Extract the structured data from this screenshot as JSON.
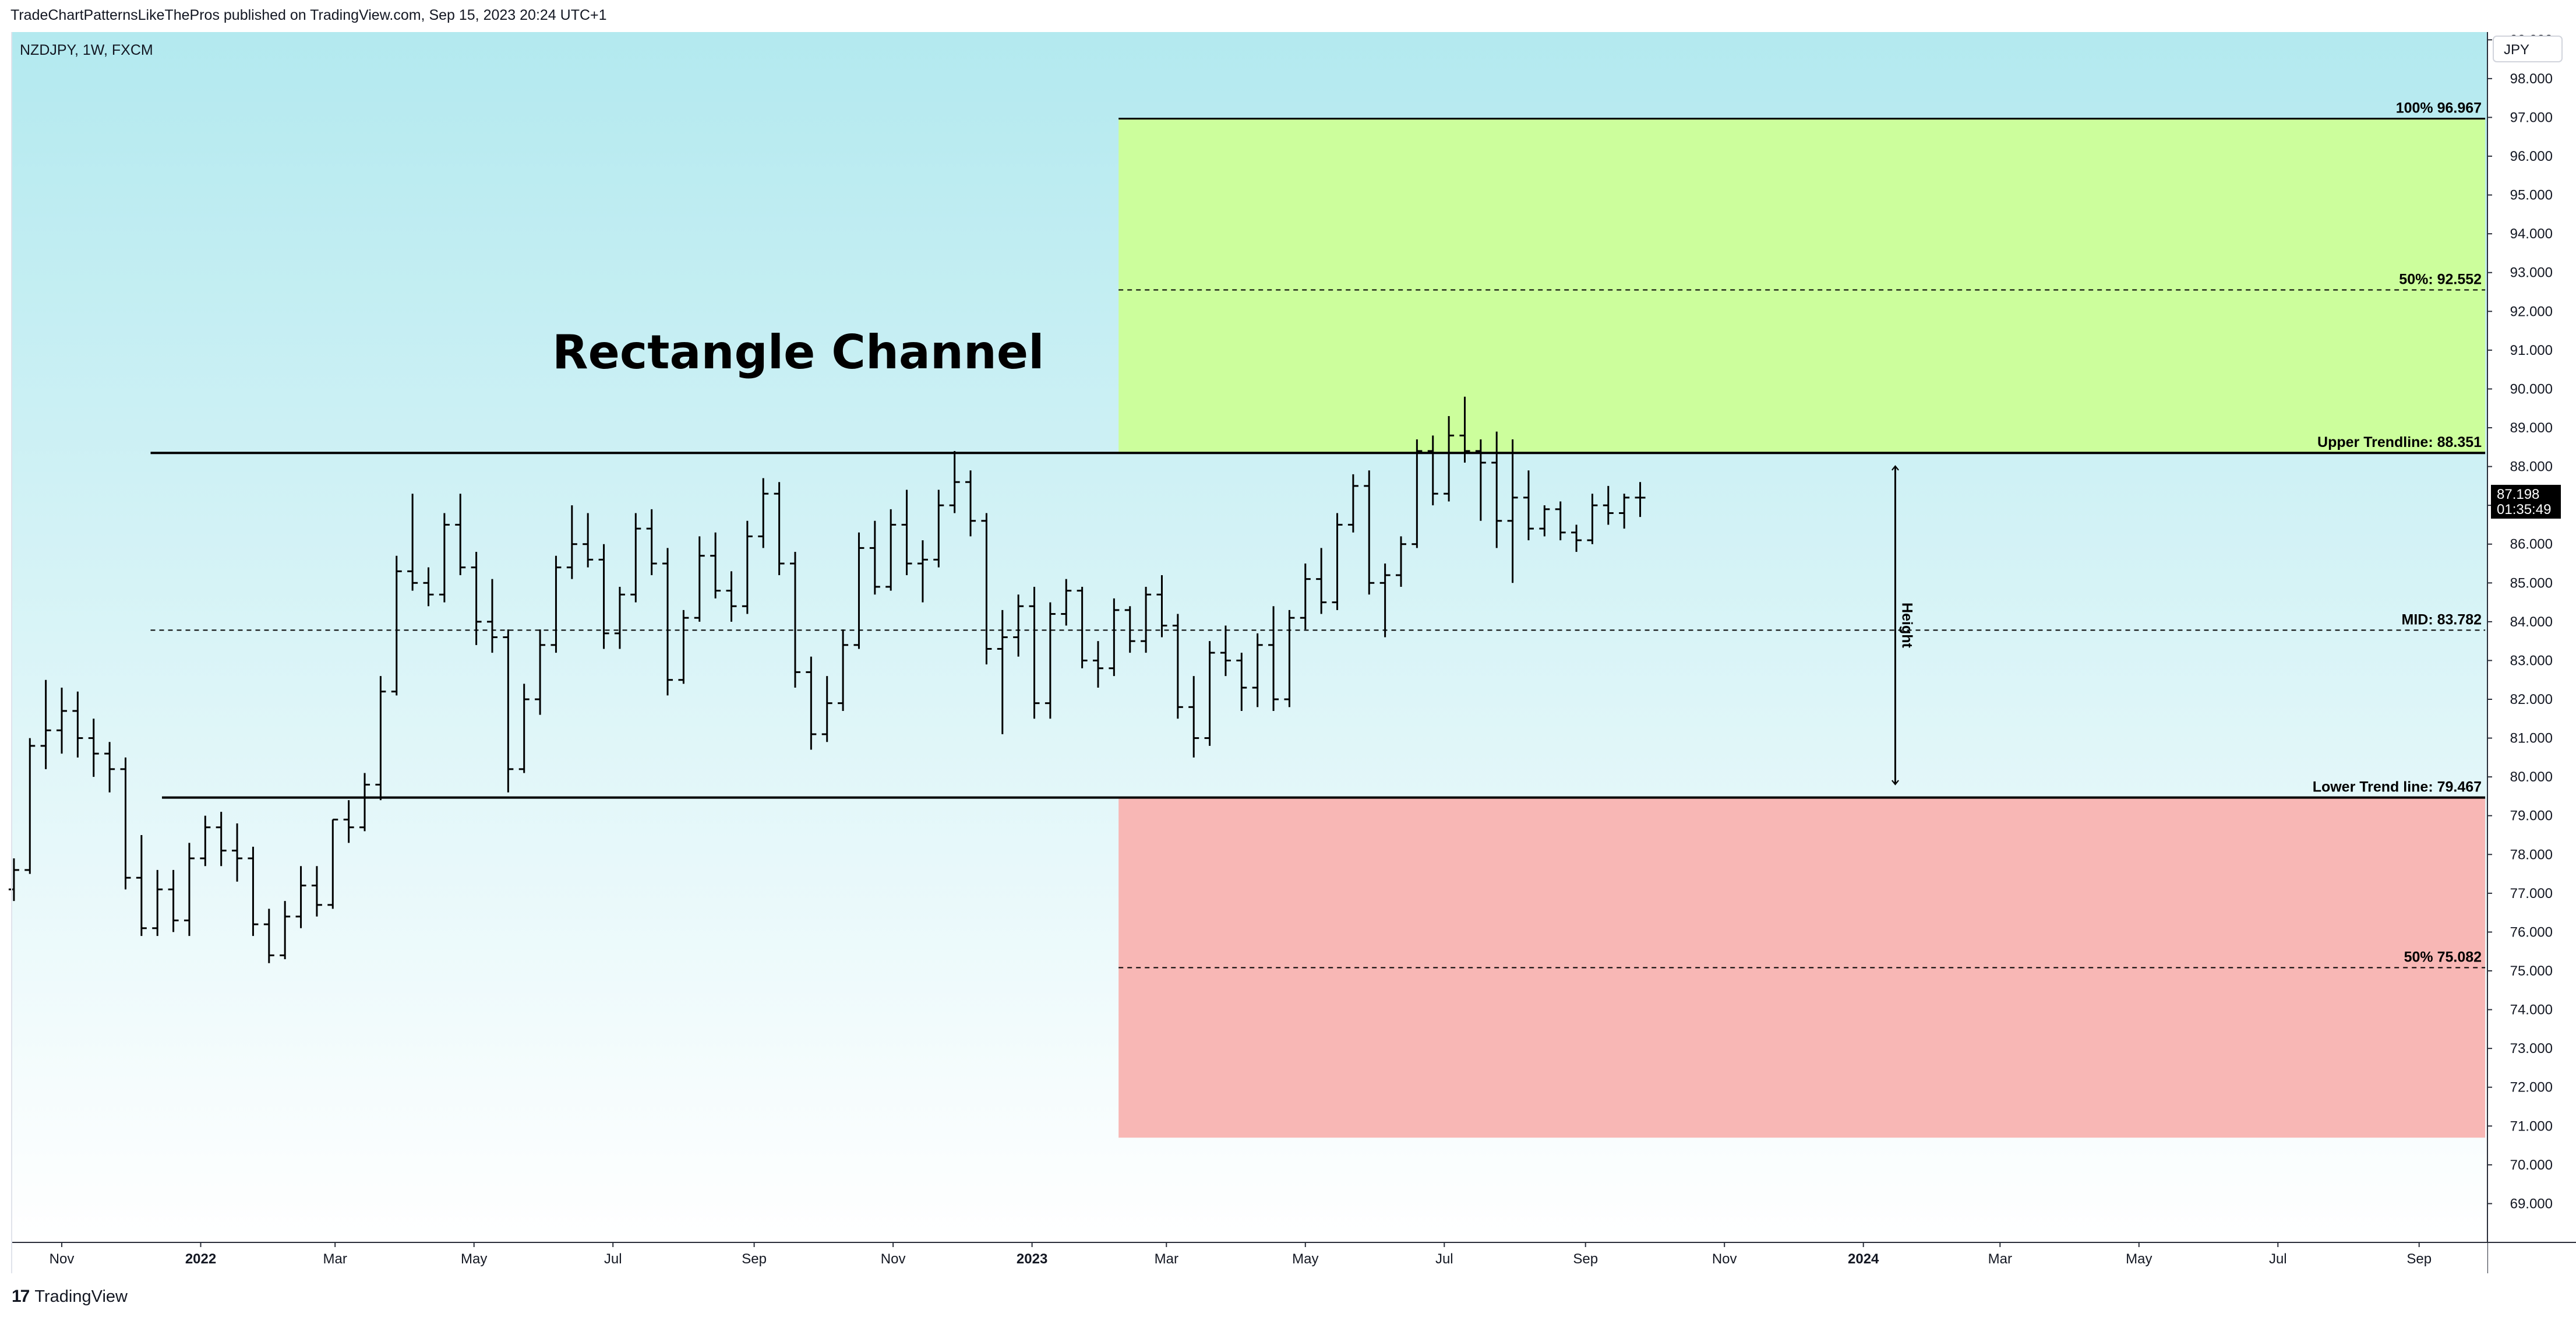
{
  "header": {
    "caption": "TradeChartPatternsLikeThePros published on TradingView.com, Sep 15, 2023 20:24 UTC+1"
  },
  "footer": {
    "brand": "TradingView",
    "logo_mark": "17"
  },
  "colors": {
    "bg_top": "#b3e9ef",
    "bg_bottom": "#ffffff",
    "target_zone": "#ccfe9c",
    "downside_zone": "#f8b7b5",
    "bars": "#000000",
    "price_tag_bg": "#000000"
  },
  "chart_data": {
    "type": "ohlc",
    "symbol_line": "NZDJPY, 1W, FXCM",
    "title": "Rectangle Channel",
    "currency_badge": "JPY",
    "current_price": "87.198",
    "countdown": "01:35:49",
    "y_axis": {
      "range": [
        68.0,
        99.2
      ],
      "ticks": [
        "69.000",
        "70.000",
        "71.000",
        "72.000",
        "73.000",
        "74.000",
        "75.000",
        "76.000",
        "77.000",
        "78.000",
        "79.000",
        "80.000",
        "81.000",
        "82.000",
        "83.000",
        "84.000",
        "85.000",
        "86.000",
        "87.000",
        "88.000",
        "89.000",
        "90.000",
        "91.000",
        "92.000",
        "93.000",
        "94.000",
        "95.000",
        "96.000",
        "97.000",
        "98.000",
        "99.000"
      ]
    },
    "x_axis": {
      "range": [
        "2021-10-10",
        "2024-10-01"
      ],
      "ticks": [
        {
          "label": "Nov",
          "date": "2021-11-01",
          "bold": false
        },
        {
          "label": "2022",
          "date": "2022-01-01",
          "bold": true
        },
        {
          "label": "Mar",
          "date": "2022-03-01",
          "bold": false
        },
        {
          "label": "May",
          "date": "2022-05-01",
          "bold": false
        },
        {
          "label": "Jul",
          "date": "2022-07-01",
          "bold": false
        },
        {
          "label": "Sep",
          "date": "2022-09-01",
          "bold": false
        },
        {
          "label": "Nov",
          "date": "2022-11-01",
          "bold": false
        },
        {
          "label": "2023",
          "date": "2023-01-01",
          "bold": true
        },
        {
          "label": "Mar",
          "date": "2023-03-01",
          "bold": false
        },
        {
          "label": "May",
          "date": "2023-05-01",
          "bold": false
        },
        {
          "label": "Jul",
          "date": "2023-07-01",
          "bold": false
        },
        {
          "label": "Sep",
          "date": "2023-09-01",
          "bold": false
        },
        {
          "label": "Nov",
          "date": "2023-11-01",
          "bold": false
        },
        {
          "label": "2024",
          "date": "2024-01-01",
          "bold": true
        },
        {
          "label": "Mar",
          "date": "2024-03-01",
          "bold": false
        },
        {
          "label": "May",
          "date": "2024-05-01",
          "bold": false
        },
        {
          "label": "Jul",
          "date": "2024-07-01",
          "bold": false
        },
        {
          "label": "Sep",
          "date": "2024-09-01",
          "bold": false
        }
      ]
    },
    "levels": {
      "upper": {
        "value": 88.351,
        "label": "Upper Trendline: 88.351",
        "start": "2021-12-10",
        "end": "2024-09-30"
      },
      "mid": {
        "value": 83.782,
        "label": "MID: 83.782",
        "start": "2021-12-10",
        "end": "2024-09-30"
      },
      "lower": {
        "value": 79.467,
        "label": "Lower Trend line: 79.467",
        "start": "2021-12-15",
        "end": "2024-09-30"
      },
      "target_100": {
        "value": 96.967,
        "label": "100% 96.967",
        "start": "2023-02-08",
        "end": "2024-09-30"
      },
      "target_50": {
        "value": 92.552,
        "label": "50%: 92.552",
        "start": "2023-02-08",
        "end": "2024-09-30"
      },
      "downside_50": {
        "value": 75.082,
        "label": "50% 75.082",
        "start": "2023-02-08",
        "end": "2024-09-30"
      }
    },
    "zones": [
      {
        "name": "upside-target",
        "from": 88.351,
        "to": 96.967,
        "start": "2023-02-08",
        "end": "2024-09-30"
      },
      {
        "name": "downside-target",
        "from": 70.7,
        "to": 79.467,
        "start": "2023-02-08",
        "end": "2024-09-30"
      }
    ],
    "height_arrow": {
      "label": "Height",
      "date": "2024-01-15",
      "from": 79.467,
      "to": 88.351
    },
    "bars_start": "2021-10-11",
    "bars_interval_days": 7,
    "bars": [
      [
        77.1,
        77.9,
        76.8,
        77.6
      ],
      [
        77.6,
        81.0,
        77.5,
        80.8
      ],
      [
        80.8,
        82.5,
        80.2,
        81.2
      ],
      [
        81.2,
        82.3,
        80.6,
        81.7
      ],
      [
        81.7,
        82.2,
        80.5,
        81.0
      ],
      [
        81.0,
        81.5,
        80.0,
        80.6
      ],
      [
        80.6,
        80.9,
        79.6,
        80.2
      ],
      [
        80.2,
        80.5,
        77.1,
        77.4
      ],
      [
        77.4,
        78.5,
        75.9,
        76.1
      ],
      [
        76.1,
        77.6,
        75.9,
        77.1
      ],
      [
        77.1,
        77.6,
        76.0,
        76.3
      ],
      [
        76.3,
        78.3,
        75.9,
        77.9
      ],
      [
        77.9,
        79.0,
        77.7,
        78.7
      ],
      [
        78.7,
        79.1,
        77.7,
        78.1
      ],
      [
        78.1,
        78.8,
        77.3,
        77.9
      ],
      [
        77.9,
        78.2,
        75.9,
        76.2
      ],
      [
        76.2,
        76.6,
        75.2,
        75.4
      ],
      [
        75.4,
        76.8,
        75.3,
        76.4
      ],
      [
        76.4,
        77.7,
        76.1,
        77.2
      ],
      [
        77.2,
        77.7,
        76.4,
        76.7
      ],
      [
        76.7,
        78.9,
        76.6,
        78.9
      ],
      [
        78.9,
        79.4,
        78.3,
        78.7
      ],
      [
        78.7,
        80.1,
        78.6,
        79.8
      ],
      [
        79.8,
        82.6,
        79.4,
        82.2
      ],
      [
        82.2,
        85.7,
        82.1,
        85.3
      ],
      [
        85.3,
        87.3,
        84.8,
        85.0
      ],
      [
        85.0,
        85.4,
        84.4,
        84.7
      ],
      [
        84.7,
        86.8,
        84.5,
        86.5
      ],
      [
        86.5,
        87.3,
        85.2,
        85.4
      ],
      [
        85.4,
        85.8,
        83.4,
        84.0
      ],
      [
        84.0,
        85.1,
        83.2,
        83.6
      ],
      [
        83.6,
        83.8,
        79.6,
        80.2
      ],
      [
        80.2,
        82.4,
        80.1,
        82.0
      ],
      [
        82.0,
        83.8,
        81.6,
        83.4
      ],
      [
        83.4,
        85.7,
        83.2,
        85.4
      ],
      [
        85.4,
        87.0,
        85.1,
        86.0
      ],
      [
        86.0,
        86.8,
        85.4,
        85.6
      ],
      [
        85.6,
        86.0,
        83.3,
        83.7
      ],
      [
        83.7,
        84.9,
        83.3,
        84.7
      ],
      [
        84.7,
        86.8,
        84.5,
        86.4
      ],
      [
        86.4,
        86.9,
        85.2,
        85.5
      ],
      [
        85.5,
        85.9,
        82.1,
        82.5
      ],
      [
        82.5,
        84.3,
        82.4,
        84.1
      ],
      [
        84.1,
        86.2,
        84.0,
        85.7
      ],
      [
        85.7,
        86.3,
        84.6,
        84.8
      ],
      [
        84.8,
        85.3,
        84.0,
        84.4
      ],
      [
        84.4,
        86.6,
        84.2,
        86.2
      ],
      [
        86.2,
        87.7,
        85.9,
        87.3
      ],
      [
        87.3,
        87.6,
        85.2,
        85.5
      ],
      [
        85.5,
        85.8,
        82.3,
        82.7
      ],
      [
        82.7,
        83.1,
        80.7,
        81.1
      ],
      [
        81.1,
        82.6,
        80.9,
        81.9
      ],
      [
        81.9,
        83.8,
        81.7,
        83.4
      ],
      [
        83.4,
        86.3,
        83.3,
        85.9
      ],
      [
        85.9,
        86.6,
        84.7,
        84.9
      ],
      [
        84.9,
        86.9,
        84.8,
        86.5
      ],
      [
        86.5,
        87.4,
        85.2,
        85.5
      ],
      [
        85.5,
        86.1,
        84.5,
        85.6
      ],
      [
        85.6,
        87.4,
        85.4,
        87.0
      ],
      [
        87.0,
        88.4,
        86.8,
        87.6
      ],
      [
        87.6,
        87.9,
        86.2,
        86.6
      ],
      [
        86.6,
        86.8,
        82.9,
        83.3
      ],
      [
        83.3,
        84.3,
        81.1,
        83.6
      ],
      [
        83.6,
        84.7,
        83.1,
        84.4
      ],
      [
        84.4,
        84.9,
        81.5,
        81.9
      ],
      [
        81.9,
        84.5,
        81.5,
        84.2
      ],
      [
        84.2,
        85.1,
        83.9,
        84.8
      ],
      [
        84.8,
        84.9,
        82.8,
        83.0
      ],
      [
        83.0,
        83.5,
        82.3,
        82.8
      ],
      [
        82.8,
        84.6,
        82.6,
        84.3
      ],
      [
        84.3,
        84.4,
        83.2,
        83.5
      ],
      [
        83.5,
        84.9,
        83.2,
        84.7
      ],
      [
        84.7,
        85.2,
        83.6,
        83.9
      ],
      [
        83.9,
        84.2,
        81.5,
        81.8
      ],
      [
        81.8,
        82.6,
        80.5,
        81.0
      ],
      [
        81.0,
        83.5,
        80.8,
        83.2
      ],
      [
        83.2,
        83.9,
        82.6,
        83.0
      ],
      [
        83.0,
        83.2,
        81.7,
        82.3
      ],
      [
        82.3,
        83.7,
        81.8,
        83.4
      ],
      [
        83.4,
        84.4,
        81.7,
        82.0
      ],
      [
        82.0,
        84.3,
        81.8,
        84.1
      ],
      [
        84.1,
        85.5,
        83.8,
        85.1
      ],
      [
        85.1,
        85.9,
        84.2,
        84.5
      ],
      [
        84.5,
        86.8,
        84.3,
        86.5
      ],
      [
        86.5,
        87.8,
        86.3,
        87.5
      ],
      [
        87.5,
        87.9,
        84.7,
        85.0
      ],
      [
        85.0,
        85.5,
        83.6,
        85.2
      ],
      [
        85.2,
        86.2,
        84.9,
        86.0
      ],
      [
        86.0,
        88.7,
        85.9,
        88.4
      ],
      [
        88.4,
        88.8,
        87.0,
        87.3
      ],
      [
        87.3,
        89.3,
        87.1,
        88.8
      ],
      [
        88.8,
        89.8,
        88.1,
        88.4
      ],
      [
        88.4,
        88.7,
        86.6,
        88.1
      ],
      [
        88.1,
        88.9,
        85.9,
        86.6
      ],
      [
        86.6,
        88.7,
        85.0,
        87.2
      ],
      [
        87.2,
        87.9,
        86.1,
        86.4
      ],
      [
        86.4,
        87.0,
        86.2,
        86.9
      ],
      [
        86.9,
        87.1,
        86.1,
        86.3
      ],
      [
        86.3,
        86.5,
        85.8,
        86.1
      ],
      [
        86.1,
        87.3,
        86.0,
        87.0
      ],
      [
        87.0,
        87.5,
        86.5,
        86.8
      ],
      [
        86.8,
        87.3,
        86.4,
        87.2
      ],
      [
        87.2,
        87.6,
        86.7,
        87.198
      ]
    ]
  }
}
